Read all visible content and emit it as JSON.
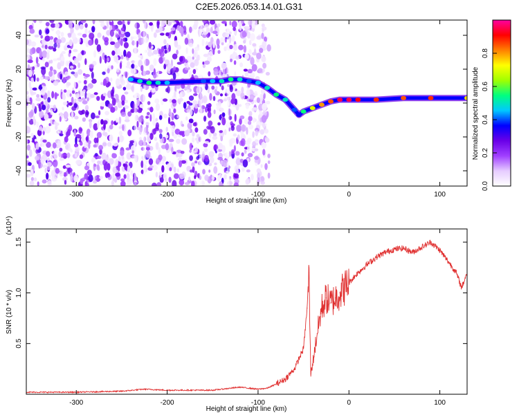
{
  "figure_title": "C2E5.2026.053.14.01.G31",
  "chart_data": [
    {
      "type": "heatmap",
      "title": "C2E5.2026.053.14.01.G31",
      "xlabel": "Height of straight line (km)",
      "ylabel": "Frequency (Hz)",
      "xlim": [
        -355,
        130
      ],
      "ylim": [
        -49,
        49
      ],
      "xticks": [
        -300,
        -200,
        -100,
        0,
        100
      ],
      "yticks": [
        -40,
        -20,
        0,
        20,
        40
      ],
      "colorbar": {
        "label": "Normalized spectral amplitude",
        "range": [
          0,
          1
        ],
        "ticks": [
          0.0,
          0.2,
          0.4,
          0.6,
          0.8
        ],
        "tick_labels": [
          "0.0",
          "0.2",
          "0.4",
          "0.6",
          "0.8"
        ],
        "colors": [
          "#ffffff",
          "#e6ccff",
          "#a040ff",
          "#6a00e8",
          "#0000ff",
          "#00c8ff",
          "#00ff80",
          "#a0ff00",
          "#ffff00",
          "#ff8000",
          "#ff0000",
          "#ff00a0"
        ]
      },
      "noise_region_x": [
        -355,
        -97
      ],
      "ridge": {
        "description": "dominant frequency track",
        "x": [
          -240,
          -230,
          -220,
          -210,
          -200,
          -160,
          -150,
          -140,
          -130,
          -120,
          -110,
          -100,
          -90,
          -80,
          -70,
          -60,
          -55,
          -50,
          -40,
          -30,
          -20,
          -10,
          0,
          10,
          30,
          60,
          90,
          130
        ],
        "y": [
          14,
          13,
          12,
          12,
          12,
          13,
          13,
          13,
          14,
          14,
          13,
          12,
          9,
          5,
          2,
          -4,
          -7,
          -5,
          -3,
          -1,
          1,
          2,
          2,
          2,
          2,
          3,
          3,
          3
        ],
        "amplitude": [
          0.45,
          0.5,
          0.55,
          0.5,
          0.45,
          0.4,
          0.45,
          0.5,
          0.55,
          0.5,
          0.4,
          0.45,
          0.5,
          0.55,
          0.5,
          0.4,
          0.35,
          0.55,
          0.7,
          0.8,
          0.85,
          0.95,
          0.95,
          0.92,
          0.88,
          0.85,
          0.88,
          0.75
        ]
      }
    },
    {
      "type": "line",
      "xlabel": "Height of straight line (km)",
      "ylabel": "SNR (10 * v/v)",
      "yscale_label": "(x10⁴)",
      "xlim": [
        -355,
        130
      ],
      "ylim": [
        0,
        1.63
      ],
      "xticks": [
        -300,
        -200,
        -100,
        0,
        100
      ],
      "yticks": [
        0.5,
        1.0,
        1.5
      ],
      "ytick_labels": [
        "0.5",
        "1.0",
        "1.5"
      ],
      "color": "#e03030",
      "series": [
        {
          "name": "SNR",
          "x": [
            -355,
            -300,
            -250,
            -225,
            -200,
            -150,
            -120,
            -100,
            -90,
            -80,
            -70,
            -60,
            -55,
            -50,
            -46,
            -44,
            -42,
            -40,
            -35,
            -30,
            -25,
            -20,
            -15,
            -10,
            -5,
            0,
            10,
            20,
            30,
            40,
            50,
            60,
            70,
            80,
            90,
            100,
            110,
            118,
            124,
            130
          ],
          "y": [
            0.02,
            0.02,
            0.03,
            0.05,
            0.04,
            0.04,
            0.07,
            0.05,
            0.06,
            0.1,
            0.15,
            0.25,
            0.35,
            0.45,
            0.85,
            1.2,
            0.2,
            0.3,
            0.6,
            0.85,
            0.95,
            0.9,
            0.95,
            1.0,
            1.05,
            1.1,
            1.2,
            1.28,
            1.35,
            1.4,
            1.43,
            1.44,
            1.4,
            1.45,
            1.5,
            1.42,
            1.3,
            1.2,
            1.05,
            1.2
          ]
        }
      ]
    }
  ]
}
